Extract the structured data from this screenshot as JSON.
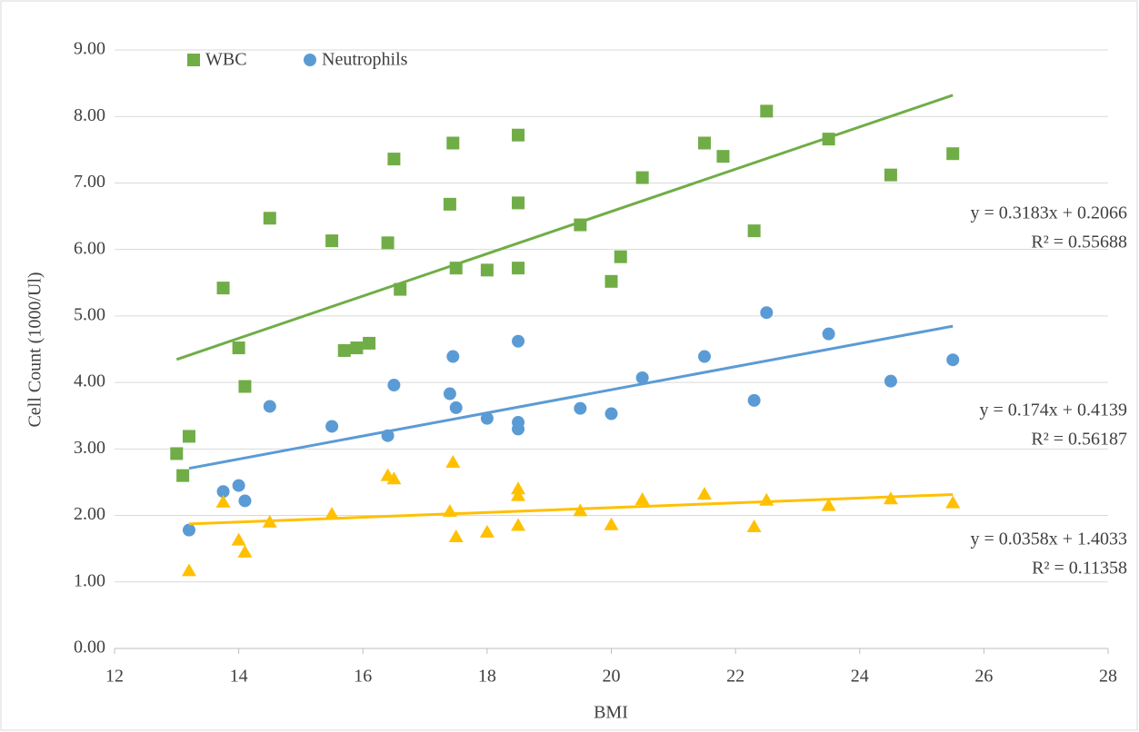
{
  "chart_data": {
    "type": "scatter",
    "x_label": "BMI",
    "y_label": "Cell Count (1000/Ul)",
    "xlim": [
      12,
      28
    ],
    "xticks": [
      12,
      14,
      16,
      18,
      20,
      22,
      24,
      26,
      28
    ],
    "ylim": [
      0,
      9
    ],
    "yticks": [
      {
        "value": 0,
        "label": "0.00"
      },
      {
        "value": 1,
        "label": "1.00"
      },
      {
        "value": 2,
        "label": "2.00"
      },
      {
        "value": 3,
        "label": "3.00"
      },
      {
        "value": 4,
        "label": "4.00"
      },
      {
        "value": 5,
        "label": "5.00"
      },
      {
        "value": 6,
        "label": "6.00"
      },
      {
        "value": 7,
        "label": "7.00"
      },
      {
        "value": 8,
        "label": "8.00"
      },
      {
        "value": 9,
        "label": "9.00"
      }
    ],
    "grid": true,
    "legend": "top-left",
    "series": [
      {
        "name": "WBC",
        "color": "#70ad47",
        "marker": "square",
        "x": [
          13.0,
          13.1,
          13.2,
          13.75,
          14.0,
          14.1,
          14.5,
          15.5,
          15.7,
          15.9,
          16.1,
          16.4,
          16.5,
          16.6,
          17.4,
          17.45,
          17.5,
          18.0,
          18.5,
          18.5,
          18.5,
          19.5,
          20.0,
          20.15,
          20.5,
          21.5,
          21.8,
          22.3,
          22.5,
          23.5,
          24.5,
          25.5
        ],
        "values": [
          2.93,
          2.6,
          3.19,
          5.42,
          4.52,
          3.94,
          6.47,
          6.13,
          4.48,
          4.52,
          4.59,
          6.1,
          7.36,
          5.4,
          6.68,
          7.6,
          5.72,
          5.69,
          7.72,
          6.7,
          5.72,
          6.37,
          5.52,
          5.89,
          7.08,
          7.6,
          7.4,
          6.28,
          8.08,
          7.66,
          7.12,
          7.44
        ],
        "trendline_label": [
          "y = 0.3183x + 0.2066",
          "R² = 0.55688"
        ]
      },
      {
        "name": "Neutrophils",
        "color": "#5b9bd5",
        "marker": "circle",
        "x": [
          13.2,
          13.75,
          14.0,
          14.1,
          14.5,
          15.5,
          16.4,
          16.5,
          17.4,
          17.45,
          17.5,
          18.0,
          18.5,
          18.5,
          18.5,
          19.5,
          20.0,
          20.5,
          21.5,
          22.3,
          22.5,
          23.5,
          24.5,
          25.5
        ],
        "values": [
          1.78,
          2.36,
          2.45,
          2.22,
          3.64,
          3.34,
          3.2,
          3.96,
          3.83,
          4.39,
          3.62,
          3.46,
          4.62,
          3.4,
          3.3,
          3.61,
          3.53,
          4.07,
          4.39,
          3.73,
          5.05,
          4.73,
          4.02,
          4.34
        ],
        "trendline_label": [
          "y = 0.174x + 0.4139",
          "R² = 0.56187"
        ]
      },
      {
        "color": "#ffc000",
        "marker": "triangle",
        "x": [
          13.2,
          13.75,
          14.0,
          14.1,
          14.5,
          15.5,
          16.4,
          16.5,
          17.4,
          17.45,
          17.5,
          18.0,
          18.5,
          18.5,
          18.5,
          19.5,
          20.0,
          20.5,
          21.5,
          22.3,
          22.5,
          23.5,
          24.5,
          25.5
        ],
        "values": [
          1.17,
          2.2,
          1.63,
          1.45,
          1.9,
          2.02,
          2.6,
          2.55,
          2.06,
          2.8,
          1.68,
          1.75,
          2.4,
          2.3,
          1.85,
          2.07,
          1.86,
          2.24,
          2.32,
          1.83,
          2.23,
          2.15,
          2.25,
          2.19
        ],
        "trendline_label": [
          "y = 0.0358x + 1.4033",
          "R² = 0.11358"
        ]
      }
    ]
  }
}
